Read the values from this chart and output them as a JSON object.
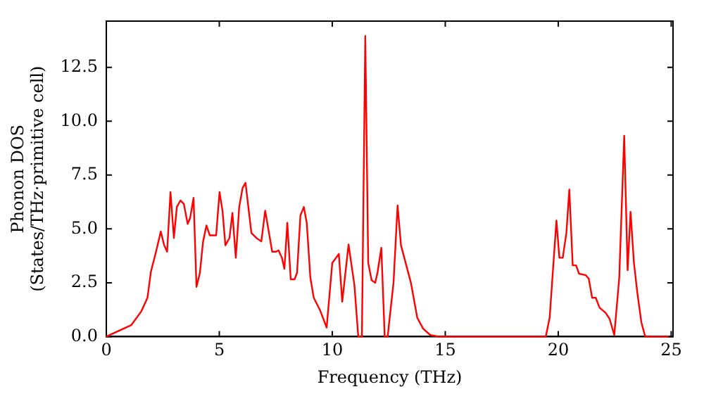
{
  "chart_data": {
    "type": "line",
    "xlabel": "Frequency (THz)",
    "ylabel": "Phonon DOS\n(States/THz·primitive cell)",
    "xlim": [
      0,
      25.08
    ],
    "ylim": [
      0,
      14.65
    ],
    "xticks": [
      0,
      5,
      10,
      15,
      20,
      25
    ],
    "yticks": [
      {
        "value": 0,
        "label": "0.0"
      },
      {
        "value": 2.5,
        "label": "2.5"
      },
      {
        "value": 5,
        "label": "5.0"
      },
      {
        "value": 7.5,
        "label": "7.5"
      },
      {
        "value": 10,
        "label": "10.0"
      },
      {
        "value": 12.5,
        "label": "12.5"
      }
    ],
    "grid": false,
    "legend": false,
    "marker": "none",
    "line_style": "solid",
    "series": [
      {
        "color": "#ff0000",
        "x": [
          0,
          1.1,
          1.54,
          1.82,
          1.97,
          2.19,
          2.41,
          2.56,
          2.69,
          2.84,
          2.99,
          3.12,
          3.28,
          3.43,
          3.6,
          3.71,
          3.86,
          3.99,
          4.14,
          4.28,
          4.43,
          4.58,
          4.86,
          5.01,
          5.14,
          5.27,
          5.45,
          5.58,
          5.73,
          5.88,
          6.03,
          6.16,
          6.42,
          6.64,
          6.86,
          7.03,
          7.18,
          7.34,
          7.51,
          7.62,
          7.77,
          7.88,
          8.01,
          8.16,
          8.33,
          8.44,
          8.59,
          8.74,
          8.87,
          9.03,
          9.18,
          9.46,
          9.75,
          10.0,
          10.29,
          10.44,
          10.72,
          10.98,
          11.15,
          11.31,
          11.46,
          11.59,
          11.74,
          11.9,
          12.0,
          12.17,
          12.32,
          12.45,
          12.71,
          12.89,
          13.04,
          13.48,
          13.76,
          14.02,
          14.34,
          14.7,
          19.45,
          19.62,
          19.92,
          20.05,
          20.2,
          20.36,
          20.49,
          20.64,
          20.79,
          20.92,
          21.22,
          21.35,
          21.5,
          21.66,
          21.83,
          22.09,
          22.27,
          22.48,
          22.7,
          22.92,
          23.07,
          23.2,
          23.35,
          23.5,
          23.68,
          23.85,
          24.9
        ],
        "values": [
          0,
          0.53,
          1.16,
          1.8,
          3.0,
          3.9,
          4.88,
          4.24,
          3.94,
          6.71,
          4.58,
          6.02,
          6.32,
          6.16,
          5.23,
          5.51,
          6.44,
          2.31,
          2.96,
          4.4,
          5.16,
          4.7,
          4.7,
          6.71,
          5.85,
          4.24,
          4.58,
          5.74,
          3.66,
          6.02,
          6.9,
          7.14,
          4.81,
          4.58,
          4.42,
          5.85,
          4.93,
          3.94,
          3.94,
          4.01,
          3.66,
          3.15,
          5.28,
          2.66,
          2.66,
          2.96,
          5.62,
          6.02,
          5.28,
          2.73,
          1.8,
          1.22,
          0.42,
          3.42,
          3.84,
          1.62,
          4.28,
          2.38,
          0,
          0,
          13.96,
          3.42,
          2.62,
          2.5,
          2.96,
          4.12,
          0,
          0,
          2.5,
          6.09,
          4.24,
          2.5,
          0.88,
          0.37,
          0.07,
          0,
          0,
          0.88,
          5.39,
          3.66,
          3.66,
          4.81,
          6.83,
          3.31,
          3.31,
          2.92,
          2.85,
          2.69,
          1.8,
          1.8,
          1.34,
          1.11,
          0.83,
          0.07,
          2.73,
          9.33,
          3.08,
          5.79,
          3.42,
          2.04,
          0.65,
          0,
          0
        ]
      }
    ]
  }
}
